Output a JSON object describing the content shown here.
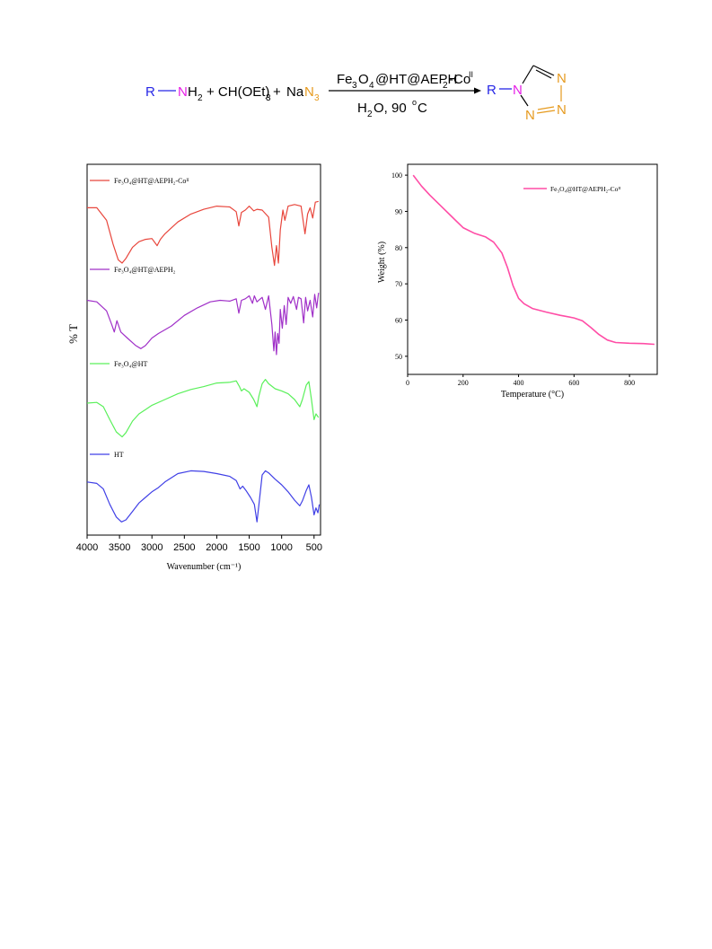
{
  "scheme": {
    "r1": "R",
    "dash1": "—",
    "n1": "N",
    "h2": "H",
    "h2_sub": "2",
    "plus1": "+ CH(OEt)",
    "orthoester_sub": "3",
    "plus2": "+",
    "na": "Na",
    "n3": "N",
    "n3_sub": "3",
    "cat_fe": "Fe",
    "cat_sub3": "3",
    "cat_o": "O",
    "cat_sub4": "4",
    "cat_rest": "@HT@AEPH",
    "cat_sub2": "2",
    "cat_co": "-Co",
    "cat_sup": "II",
    "cond_h": "H",
    "cond_sub": "2",
    "cond_rest": "O, 90",
    "cond_deg": "o",
    "cond_c": "C",
    "prod_r": "R",
    "prod_n1": "N",
    "prod_n2": "N",
    "prod_n3": "N",
    "prod_n4": "N",
    "colors": {
      "r": "#2626e6",
      "n_amine": "#e61ee6",
      "azide": "#e69a1e",
      "black": "#000000"
    }
  },
  "chart_data": [
    {
      "type": "line",
      "ylabel": "% T",
      "xlabel": "Wavenumber (cm⁻¹)",
      "xlim": [
        4000,
        400
      ],
      "x_ticks": [
        4000,
        3500,
        3000,
        2500,
        2000,
        1500,
        1000,
        500
      ],
      "y_ticks_shown": false,
      "legend_placement": "inline above each trace",
      "series": [
        {
          "name": "Fe₃O₄@HT@AEPH₂-Coᴵᴵ",
          "color": "#e8463c",
          "points": [
            [
              4000,
              78
            ],
            [
              3850,
              78
            ],
            [
              3700,
              62
            ],
            [
              3600,
              32
            ],
            [
              3520,
              12
            ],
            [
              3460,
              8
            ],
            [
              3400,
              14
            ],
            [
              3300,
              28
            ],
            [
              3200,
              35
            ],
            [
              3100,
              38
            ],
            [
              3000,
              39
            ],
            [
              2920,
              30
            ],
            [
              2870,
              38
            ],
            [
              2800,
              45
            ],
            [
              2600,
              60
            ],
            [
              2400,
              70
            ],
            [
              2200,
              76
            ],
            [
              2000,
              80
            ],
            [
              1800,
              79
            ],
            [
              1700,
              73
            ],
            [
              1660,
              55
            ],
            [
              1620,
              72
            ],
            [
              1560,
              75
            ],
            [
              1500,
              80
            ],
            [
              1430,
              74
            ],
            [
              1380,
              76
            ],
            [
              1300,
              75
            ],
            [
              1200,
              66
            ],
            [
              1150,
              28
            ],
            [
              1110,
              5
            ],
            [
              1080,
              30
            ],
            [
              1050,
              8
            ],
            [
              1020,
              50
            ],
            [
              980,
              75
            ],
            [
              950,
              62
            ],
            [
              900,
              80
            ],
            [
              800,
              82
            ],
            [
              700,
              80
            ],
            [
              640,
              45
            ],
            [
              600,
              70
            ],
            [
              560,
              78
            ],
            [
              520,
              65
            ],
            [
              480,
              85
            ],
            [
              430,
              86
            ]
          ]
        },
        {
          "name": "Fe₃O₄@HT@AEPH₂",
          "color": "#a030c8",
          "points": [
            [
              4000,
              72
            ],
            [
              3850,
              70
            ],
            [
              3700,
              58
            ],
            [
              3620,
              40
            ],
            [
              3580,
              30
            ],
            [
              3540,
              45
            ],
            [
              3480,
              30
            ],
            [
              3380,
              22
            ],
            [
              3250,
              12
            ],
            [
              3170,
              8
            ],
            [
              3100,
              12
            ],
            [
              3000,
              22
            ],
            [
              2900,
              28
            ],
            [
              2700,
              38
            ],
            [
              2500,
              52
            ],
            [
              2300,
              62
            ],
            [
              2100,
              70
            ],
            [
              1950,
              72
            ],
            [
              1800,
              71
            ],
            [
              1700,
              74
            ],
            [
              1660,
              55
            ],
            [
              1620,
              72
            ],
            [
              1560,
              74
            ],
            [
              1500,
              78
            ],
            [
              1450,
              68
            ],
            [
              1420,
              78
            ],
            [
              1380,
              70
            ],
            [
              1300,
              76
            ],
            [
              1250,
              60
            ],
            [
              1200,
              78
            ],
            [
              1150,
              40
            ],
            [
              1120,
              5
            ],
            [
              1100,
              30
            ],
            [
              1080,
              0
            ],
            [
              1060,
              28
            ],
            [
              1040,
              15
            ],
            [
              1020,
              60
            ],
            [
              990,
              35
            ],
            [
              960,
              65
            ],
            [
              930,
              40
            ],
            [
              900,
              76
            ],
            [
              860,
              68
            ],
            [
              820,
              77
            ],
            [
              770,
              60
            ],
            [
              740,
              76
            ],
            [
              700,
              74
            ],
            [
              660,
              42
            ],
            [
              630,
              76
            ],
            [
              600,
              58
            ],
            [
              560,
              72
            ],
            [
              520,
              50
            ],
            [
              490,
              80
            ],
            [
              460,
              62
            ],
            [
              430,
              82
            ]
          ]
        },
        {
          "name": "Fe₃O₄@HT",
          "color": "#5af05a",
          "points": [
            [
              4000,
              55
            ],
            [
              3850,
              56
            ],
            [
              3750,
              50
            ],
            [
              3650,
              32
            ],
            [
              3550,
              15
            ],
            [
              3460,
              8
            ],
            [
              3400,
              14
            ],
            [
              3300,
              30
            ],
            [
              3200,
              40
            ],
            [
              3100,
              46
            ],
            [
              3000,
              52
            ],
            [
              2800,
              60
            ],
            [
              2600,
              68
            ],
            [
              2400,
              74
            ],
            [
              2200,
              78
            ],
            [
              2000,
              83
            ],
            [
              1800,
              84
            ],
            [
              1700,
              86
            ],
            [
              1650,
              78
            ],
            [
              1620,
              72
            ],
            [
              1580,
              75
            ],
            [
              1500,
              70
            ],
            [
              1430,
              60
            ],
            [
              1380,
              50
            ],
            [
              1350,
              65
            ],
            [
              1300,
              82
            ],
            [
              1250,
              88
            ],
            [
              1200,
              82
            ],
            [
              1100,
              75
            ],
            [
              1000,
              72
            ],
            [
              900,
              68
            ],
            [
              800,
              60
            ],
            [
              720,
              50
            ],
            [
              680,
              60
            ],
            [
              620,
              80
            ],
            [
              580,
              85
            ],
            [
              540,
              60
            ],
            [
              500,
              32
            ],
            [
              470,
              40
            ],
            [
              430,
              35
            ]
          ]
        },
        {
          "name": "HT",
          "color": "#4040e6",
          "points": [
            [
              4000,
              72
            ],
            [
              3850,
              70
            ],
            [
              3750,
              62
            ],
            [
              3650,
              40
            ],
            [
              3550,
              22
            ],
            [
              3470,
              15
            ],
            [
              3400,
              18
            ],
            [
              3300,
              30
            ],
            [
              3200,
              42
            ],
            [
              3100,
              50
            ],
            [
              3000,
              58
            ],
            [
              2900,
              64
            ],
            [
              2800,
              72
            ],
            [
              2600,
              84
            ],
            [
              2400,
              88
            ],
            [
              2200,
              87
            ],
            [
              2000,
              84
            ],
            [
              1800,
              80
            ],
            [
              1700,
              74
            ],
            [
              1640,
              62
            ],
            [
              1600,
              66
            ],
            [
              1550,
              60
            ],
            [
              1480,
              50
            ],
            [
              1420,
              40
            ],
            [
              1380,
              15
            ],
            [
              1350,
              40
            ],
            [
              1300,
              82
            ],
            [
              1250,
              88
            ],
            [
              1200,
              85
            ],
            [
              1100,
              76
            ],
            [
              1000,
              68
            ],
            [
              900,
              58
            ],
            [
              800,
              46
            ],
            [
              720,
              38
            ],
            [
              680,
              45
            ],
            [
              620,
              60
            ],
            [
              580,
              68
            ],
            [
              540,
              50
            ],
            [
              500,
              25
            ],
            [
              470,
              35
            ],
            [
              440,
              28
            ],
            [
              420,
              40
            ]
          ]
        }
      ]
    },
    {
      "type": "line",
      "xlabel": "Temperature (°C)",
      "ylabel": "Weight (%)",
      "xlim": [
        0,
        900
      ],
      "ylim": [
        45,
        103
      ],
      "x_ticks": [
        0,
        200,
        400,
        600,
        800
      ],
      "y_ticks": [
        50,
        60,
        70,
        80,
        90,
        100
      ],
      "legend_placement": "top-right",
      "series": [
        {
          "name": "Fe₃O₄@HT@AEPH₂-Coᴵᴵ",
          "color": "#ff4da6",
          "points": [
            [
              20,
              100
            ],
            [
              50,
              97
            ],
            [
              80,
              94.5
            ],
            [
              120,
              91.5
            ],
            [
              160,
              88.5
            ],
            [
              200,
              85.5
            ],
            [
              240,
              84
            ],
            [
              280,
              83
            ],
            [
              310,
              81.5
            ],
            [
              340,
              78.5
            ],
            [
              360,
              74.5
            ],
            [
              380,
              69.5
            ],
            [
              400,
              66
            ],
            [
              420,
              64.5
            ],
            [
              450,
              63.2
            ],
            [
              500,
              62.2
            ],
            [
              550,
              61.3
            ],
            [
              600,
              60.6
            ],
            [
              630,
              59.8
            ],
            [
              660,
              58
            ],
            [
              690,
              56
            ],
            [
              720,
              54.5
            ],
            [
              750,
              53.8
            ],
            [
              800,
              53.6
            ],
            [
              850,
              53.5
            ],
            [
              890,
              53.3
            ]
          ]
        }
      ]
    }
  ]
}
